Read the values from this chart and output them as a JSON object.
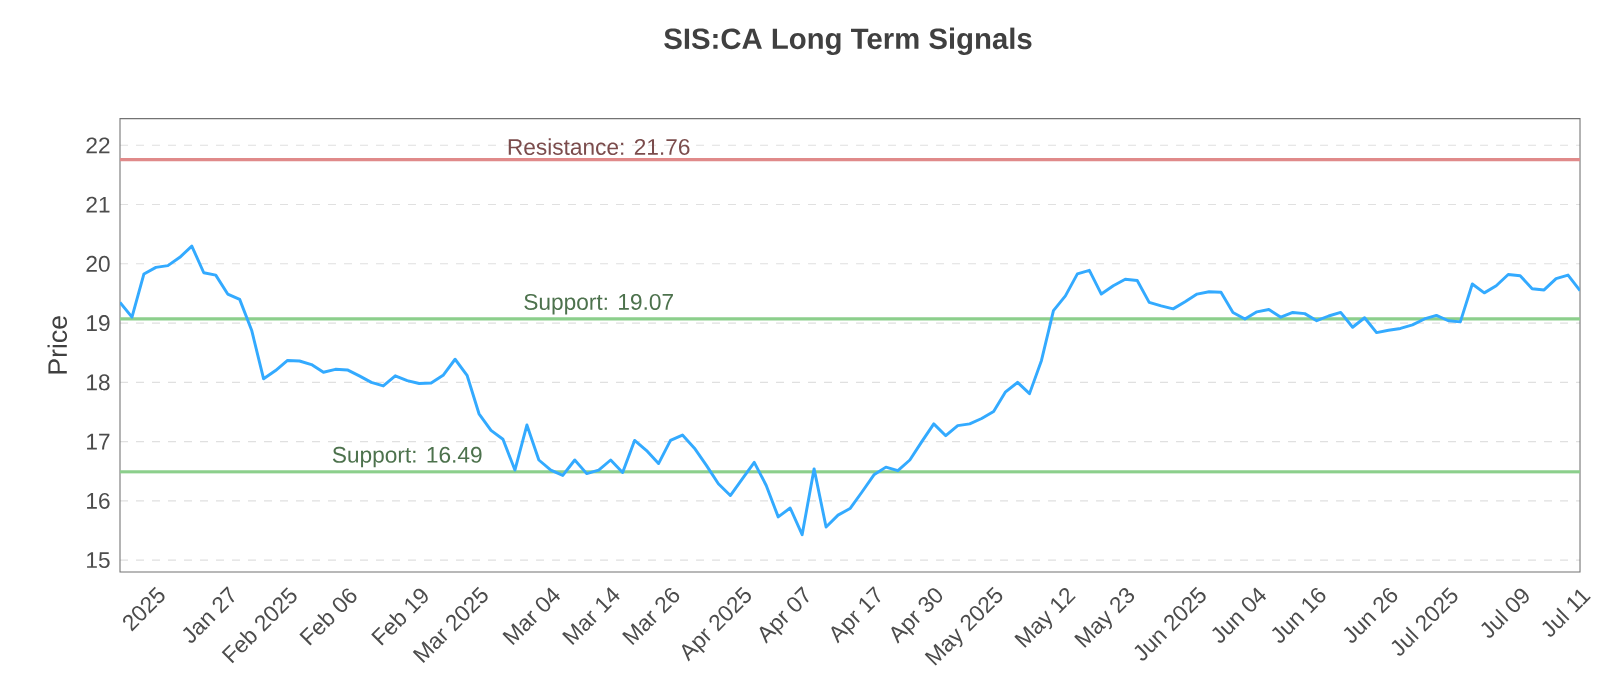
{
  "chart_data": {
    "type": "line",
    "title": "SIS:CA Long Term Signals",
    "ylabel": "Price",
    "categories": [
      null,
      null,
      null,
      "2025",
      null,
      null,
      null,
      null,
      null,
      "Jan 27",
      null,
      null,
      null,
      null,
      "Feb 2025",
      null,
      null,
      null,
      null,
      "Feb 06",
      null,
      null,
      null,
      null,
      null,
      "Feb 19",
      null,
      null,
      null,
      null,
      "Mar 2025",
      null,
      null,
      null,
      null,
      null,
      "Mar 04",
      null,
      null,
      null,
      null,
      "Mar 14",
      null,
      null,
      null,
      null,
      "Mar 26",
      null,
      null,
      null,
      null,
      null,
      "Apr 2025",
      null,
      null,
      null,
      null,
      "Apr 07",
      null,
      null,
      null,
      null,
      null,
      "Apr 17",
      null,
      null,
      null,
      null,
      "Apr 30",
      null,
      null,
      null,
      null,
      "May 2025",
      null,
      null,
      null,
      null,
      null,
      "May 12",
      null,
      null,
      null,
      null,
      "May 23",
      null,
      null,
      null,
      null,
      null,
      "Jun 2025",
      null,
      null,
      null,
      null,
      "Jun 04",
      null,
      null,
      null,
      null,
      "Jun 16",
      null,
      null,
      null,
      null,
      null,
      "Jun 26",
      null,
      null,
      null,
      null,
      "Jul 2025",
      null,
      null,
      null,
      null,
      null,
      "Jul 09",
      null,
      null,
      null,
      null,
      "Jul 11"
    ],
    "series": [
      {
        "color": "#33aaff",
        "values": [
          19.35,
          19.1,
          19.83,
          19.94,
          19.97,
          20.11,
          20.3,
          19.85,
          19.81,
          19.49,
          19.4,
          18.88,
          18.06,
          18.2,
          18.37,
          18.36,
          18.3,
          18.17,
          18.22,
          18.21,
          18.11,
          18.0,
          17.94,
          18.11,
          18.03,
          17.98,
          17.99,
          18.12,
          18.39,
          18.12,
          17.47,
          17.19,
          17.04,
          16.52,
          17.28,
          16.69,
          16.52,
          16.43,
          16.69,
          16.46,
          16.52,
          16.69,
          16.48,
          17.02,
          16.85,
          16.63,
          17.02,
          17.11,
          16.89,
          16.6,
          16.29,
          16.09,
          16.37,
          16.65,
          16.26,
          15.73,
          15.88,
          15.43,
          16.54,
          15.56,
          15.76,
          15.87,
          16.15,
          16.44,
          16.57,
          16.51,
          16.69,
          17.0,
          17.3,
          17.1,
          17.27,
          17.3,
          17.39,
          17.51,
          17.84,
          18.0,
          17.81,
          18.37,
          19.21,
          19.46,
          19.83,
          19.89,
          19.49,
          19.63,
          19.74,
          19.72,
          19.35,
          19.29,
          19.24,
          19.36,
          19.49,
          19.53,
          19.52,
          19.18,
          19.07,
          19.19,
          19.23,
          19.1,
          19.18,
          19.16,
          19.04,
          19.12,
          19.18,
          18.93,
          19.09,
          18.84,
          18.88,
          18.91,
          18.97,
          19.07,
          19.13,
          19.04,
          19.02,
          19.66,
          19.51,
          19.63,
          19.82,
          19.8,
          19.58,
          19.56,
          19.75,
          19.81,
          19.55
        ]
      }
    ],
    "ylim": [
      14.8,
      22.45
    ],
    "yticks": [
      15,
      16,
      17,
      18,
      19,
      20,
      21,
      22
    ],
    "grid": "y",
    "marker": "none",
    "line_style": "solid",
    "ref_lines": [
      {
        "axis": "y",
        "value": 21.76,
        "label": "Resistance: 21.76",
        "color": "#e08a8a"
      },
      {
        "axis": "y",
        "value": 19.07,
        "label": "Support: 19.07",
        "color": "#8ccf8c"
      },
      {
        "axis": "y",
        "value": 16.49,
        "label": "Support: 16.49",
        "color": "#8ccf8c"
      }
    ]
  }
}
